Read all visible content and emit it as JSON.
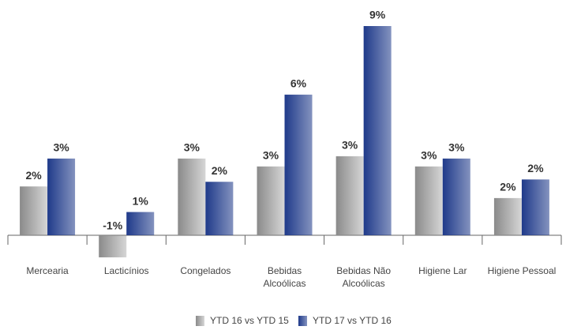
{
  "chart_data": {
    "type": "bar",
    "categories": [
      "Mercearia",
      "Lacticínios",
      "Congelados",
      "Bebidas Alcoólicas",
      "Bebidas Não Alcoólicas",
      "Higiene Lar",
      "Higiene Pessoal"
    ],
    "series": [
      {
        "name": "YTD 16 vs YTD 15",
        "color": "#8a8a8a",
        "values": [
          2.1,
          -0.95,
          3.3,
          2.96,
          3.4,
          2.96,
          1.6
        ],
        "value_labels": [
          "2%",
          "-1%",
          "3%",
          "3%",
          "3%",
          "3%",
          "2%"
        ]
      },
      {
        "name": "YTD 17 vs YTD 16",
        "color": "#1f3a8a",
        "values": [
          3.3,
          1.0,
          2.3,
          6.05,
          9.0,
          3.3,
          2.4
        ],
        "value_labels": [
          "3%",
          "1%",
          "2%",
          "6%",
          "9%",
          "3%",
          "2%"
        ]
      }
    ]
  }
}
